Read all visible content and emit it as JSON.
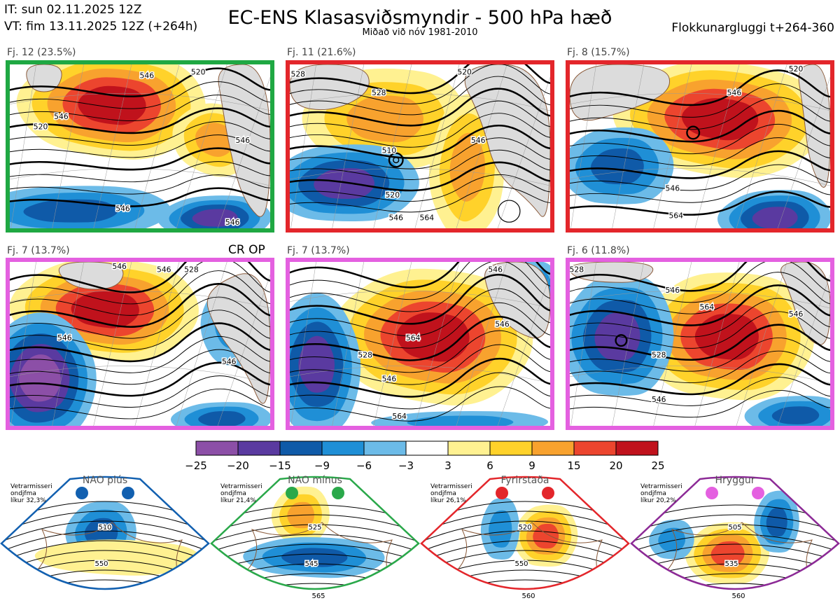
{
  "header": {
    "init_time": "IT: sun 02.11.2025 12Z",
    "valid_time": "VT: fim 13.11.2025 12Z  (+264h)",
    "title": "EC-ENS Klasasviðsmyndir - 500 hPa hæð",
    "subtitle": "Miðað við nóv 1981-2010",
    "window": "Flokkunargluggi t+264-360"
  },
  "colors": {
    "land": "#dcdcdc",
    "coast": "#8a5a3a",
    "contour": "#000000",
    "bins": [
      "#8c4fa7",
      "#5a3aa0",
      "#0f5aa8",
      "#1f8fd6",
      "#6cbbe8",
      "#ffffff",
      "#fff191",
      "#ffd22a",
      "#f8a22e",
      "#ec452e",
      "#c0121c"
    ]
  },
  "panels": [
    {
      "label": "Fj. 12 (23.5%)",
      "border": "#1fa843",
      "contour_labels": [
        "546",
        "520",
        "546",
        "520",
        "546",
        "546",
        "546"
      ],
      "extra": ""
    },
    {
      "label": "Fj. 11 (21.6%)",
      "border": "#e3262b",
      "contour_labels": [
        "510",
        "528",
        "520",
        "528",
        "546",
        "546",
        "564",
        "520"
      ],
      "extra": ""
    },
    {
      "label": "Fj. 8 (15.7%)",
      "border": "#e3262b",
      "contour_labels": [
        "546",
        "546",
        "564",
        "520"
      ],
      "extra": ""
    },
    {
      "label": "Fj. 7 (13.7%)",
      "border": "#e460e0",
      "contour_labels": [
        "546",
        "546",
        "546",
        "546",
        "528"
      ],
      "extra": "CR OP"
    },
    {
      "label": "Fj. 7 (13.7%)",
      "border": "#e460e0",
      "contour_labels": [
        "528",
        "546",
        "546",
        "564",
        "564",
        "546"
      ],
      "extra": ""
    },
    {
      "label": "Fj. 6 (11.8%)",
      "border": "#e460e0",
      "contour_labels": [
        "546",
        "564",
        "546",
        "546",
        "528",
        "528"
      ],
      "extra": ""
    }
  ],
  "chart_data": {
    "type": "heatmap",
    "title": "EC-ENS Klasasviðsmyndir - 500 hPa hæð",
    "variable": "500 hPa geopotential height anomaly (dam)",
    "colorbar": {
      "ticks": [
        "−25",
        "−20",
        "−15",
        "−9",
        "−6",
        "−3",
        "3",
        "6",
        "9",
        "15",
        "20",
        "25"
      ],
      "tick_values": [
        -25,
        -20,
        -15,
        -9,
        -6,
        -3,
        3,
        6,
        9,
        15,
        20,
        25
      ]
    },
    "clusters": [
      {
        "name": "Fj. 12",
        "share": 23.5
      },
      {
        "name": "Fj. 11",
        "share": 21.6
      },
      {
        "name": "Fj. 8",
        "share": 15.7
      },
      {
        "name": "Fj. 7",
        "share": 13.7
      },
      {
        "name": "Fj. 7",
        "share": 13.7
      },
      {
        "name": "Fj. 6",
        "share": 11.8
      }
    ]
  },
  "regimes": [
    {
      "name": "NAO plús",
      "note": [
        "Vetrarmisseri",
        "ondjfma",
        "líkur 32,3%"
      ],
      "border": "#1260b0",
      "dot": "#1260b0",
      "labels": [
        "510",
        "550"
      ]
    },
    {
      "name": "NAO mínus",
      "note": [
        "Vetrarmisseri",
        "ondjfma",
        "líkur 21,4%"
      ],
      "border": "#2aa84a",
      "dot": "#2aa84a",
      "labels": [
        "525",
        "545",
        "565"
      ]
    },
    {
      "name": "Fyrirstaða",
      "note": [
        "Vetrarmisseri",
        "ondjfma",
        "líkur 26,1%"
      ],
      "border": "#e3262b",
      "dot": "#e3262b",
      "labels": [
        "520",
        "550",
        "560"
      ]
    },
    {
      "name": "Hryggur",
      "note": [
        "Vetrarmisseri",
        "ondjfma",
        "líkur 20,2%"
      ],
      "border": "#8c2a96",
      "dot": "#e460e0",
      "labels": [
        "505",
        "535",
        "560"
      ]
    }
  ]
}
